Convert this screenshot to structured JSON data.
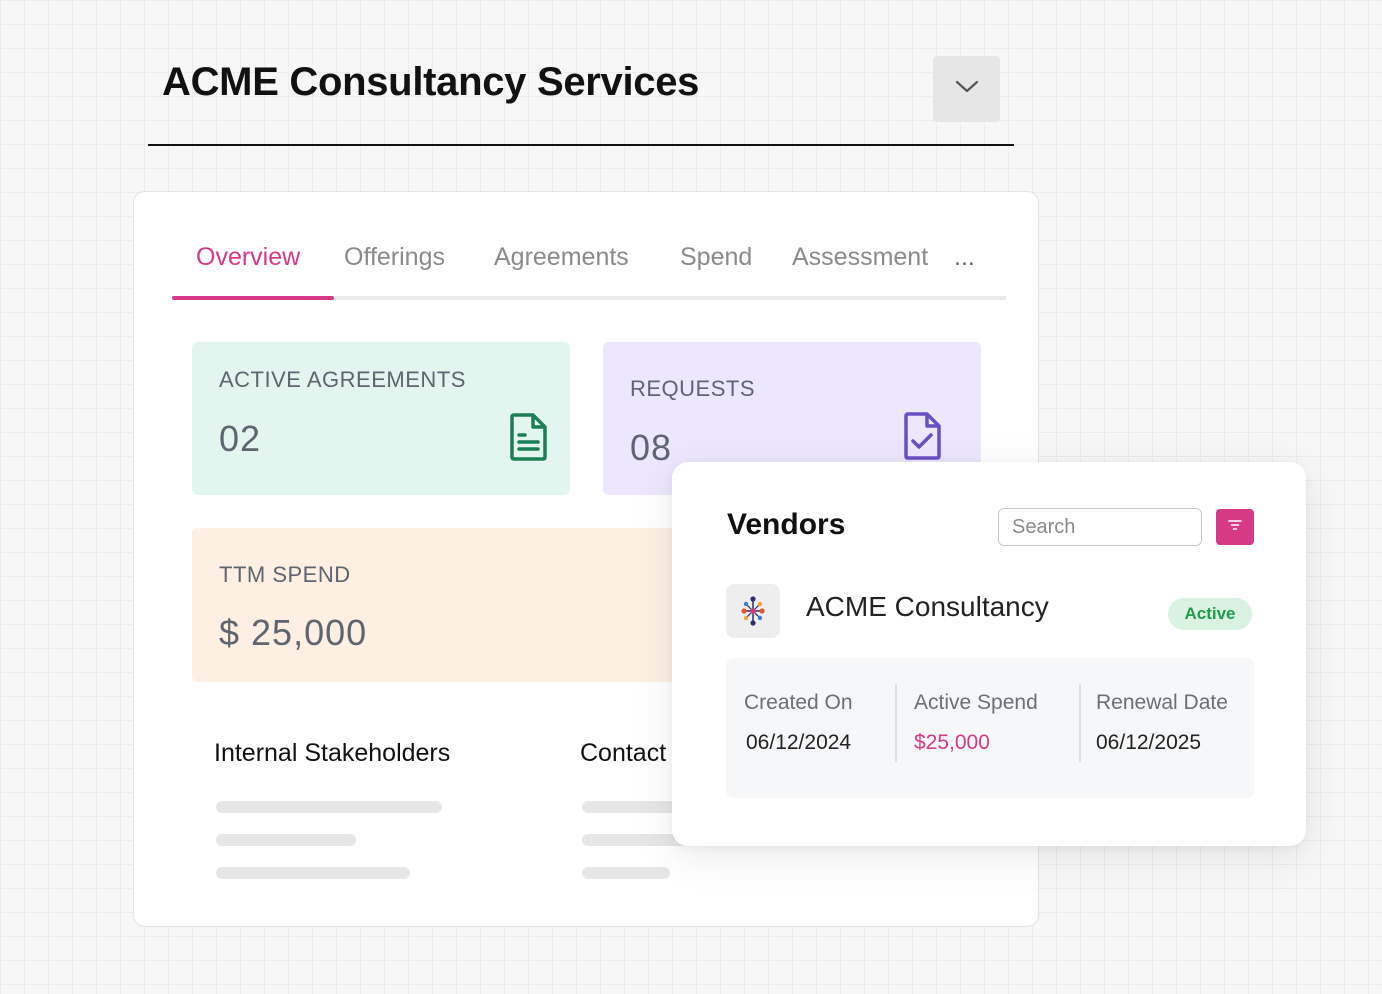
{
  "header": {
    "title": "ACME Consultancy Services"
  },
  "tabs": [
    {
      "label": "Overview",
      "active": true
    },
    {
      "label": "Offerings",
      "active": false
    },
    {
      "label": "Agreements",
      "active": false
    },
    {
      "label": "Spend",
      "active": false
    },
    {
      "label": "Assessment",
      "active": false
    }
  ],
  "tabs_more": "...",
  "stats": {
    "active_agreements": {
      "label": "ACTIVE AGREEMENTS",
      "value": "02",
      "icon": "document-icon",
      "color": "#1a7f54"
    },
    "requests": {
      "label": "REQUESTS",
      "value": "08",
      "icon": "document-check-icon",
      "color": "#6a4fc4"
    },
    "ttm_spend": {
      "label": "TTM SPEND",
      "value": "$ 25,000"
    }
  },
  "sections": {
    "internal_stakeholders": "Internal Stakeholders",
    "contact": "Contact"
  },
  "vendors": {
    "title": "Vendors",
    "search_placeholder": "Search",
    "filter_icon": "filter-icon",
    "vendor": {
      "name": "ACME Consultancy",
      "status": "Active",
      "created_on_label": "Created On",
      "created_on": "06/12/2024",
      "active_spend_label": "Active Spend",
      "active_spend": "$25,000",
      "renewal_date_label": "Renewal Date",
      "renewal_date": "06/12/2025"
    }
  },
  "colors": {
    "accent": "#d63a86",
    "active_green": "#1f9d4f"
  }
}
